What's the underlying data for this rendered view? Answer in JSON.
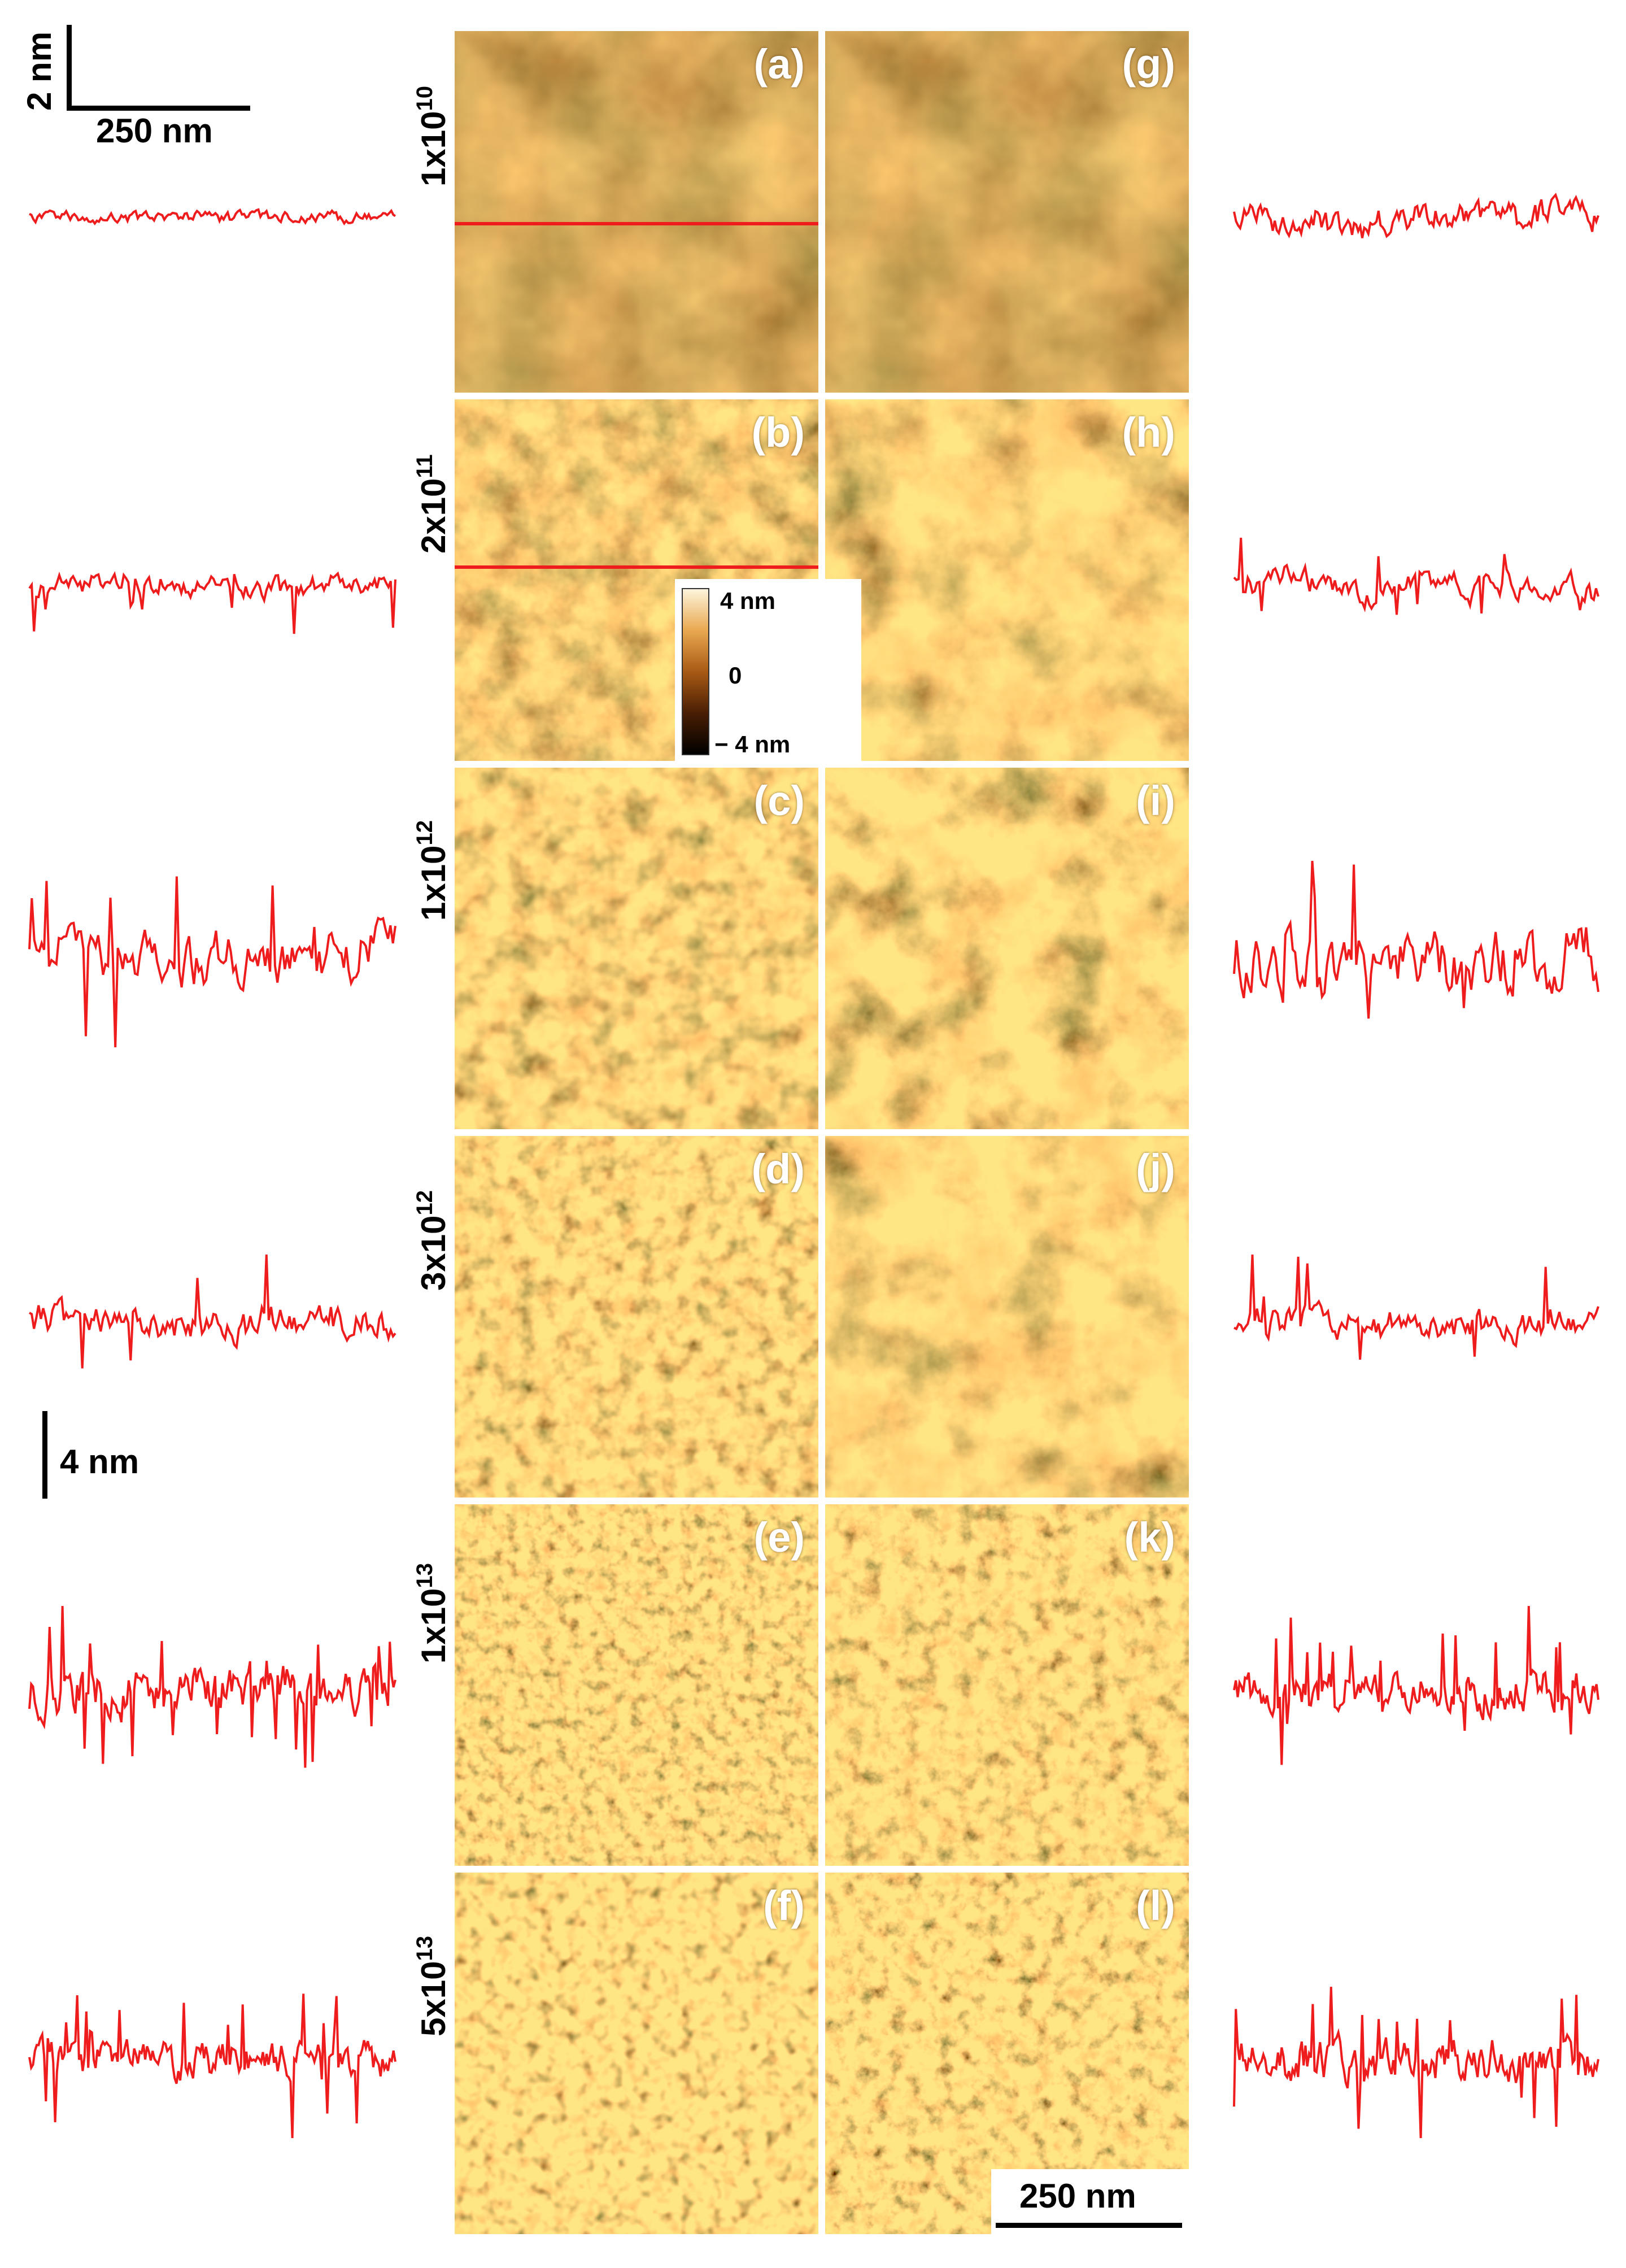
{
  "panels": {
    "left": [
      {
        "label": "(a)",
        "texture": "smooth"
      },
      {
        "label": "(b)",
        "texture": "low"
      },
      {
        "label": "(c)",
        "texture": "mid"
      },
      {
        "label": "(d)",
        "texture": "mid2"
      },
      {
        "label": "(e)",
        "texture": "fine"
      },
      {
        "label": "(f)",
        "texture": "grain"
      }
    ],
    "right": [
      {
        "label": "(g)",
        "texture": "smooth"
      },
      {
        "label": "(h)",
        "texture": "patchy"
      },
      {
        "label": "(i)",
        "texture": "patchy2"
      },
      {
        "label": "(j)",
        "texture": "patchy3"
      },
      {
        "label": "(k)",
        "texture": "fine2"
      },
      {
        "label": "(l)",
        "texture": "fine3"
      }
    ]
  },
  "fluences": [
    {
      "base": "1x10",
      "exp": "10"
    },
    {
      "base": "2x10",
      "exp": "11"
    },
    {
      "base": "1x10",
      "exp": "12"
    },
    {
      "base": "3x10",
      "exp": "12"
    },
    {
      "base": "1x10",
      "exp": "13"
    },
    {
      "base": "5x10",
      "exp": "13"
    }
  ],
  "scale_bars": {
    "top_vertical": "2 nm",
    "top_horizontal": "250 nm",
    "middle_vertical": "4 nm",
    "bottom_horizontal": "250 nm"
  },
  "colorbar": {
    "max": "4 nm",
    "mid": "0",
    "min": "− 4 nm",
    "colors": [
      "#fdf4dc",
      "#e8a850",
      "#a85a14",
      "#4a1e04",
      "#000000"
    ]
  },
  "colors": {
    "profile": "#ee1c1c",
    "afm_base": "#a05a1a",
    "afm_light": "#f0c27a",
    "afm_dark": "#3a1604",
    "separator": "#ffffff"
  },
  "profiles": {
    "left": [
      "flat",
      "medium",
      "large",
      "medium2",
      "spiky",
      "spiky2"
    ],
    "right": [
      "small",
      "medium",
      "large",
      "medium2",
      "spiky",
      "spiky2"
    ]
  }
}
